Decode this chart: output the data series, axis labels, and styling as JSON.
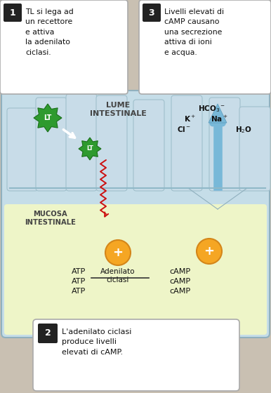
{
  "bg_color": "#c9c0b2",
  "fig_width": 3.86,
  "fig_height": 5.6,
  "box1_text": "TL si lega ad\nun recettore\ne attiva\nla adenilato\nciclasi.",
  "box2_text": "L'adenilato ciclasi\nproduce livelli\nelevati di cAMP.",
  "box3_text": "Livelli elevati di\ncAMP causano\nuna secrezione\nattiva di ioni\ne acqua.",
  "label1": "1",
  "label2": "2",
  "label3": "3",
  "lume_text": "LUME\nINTESTINALE",
  "mucosa_text": "MUCOSA\nINTESTINALE",
  "lt_text": "LT",
  "atp_text": "ATP\nATP\nATP",
  "camp_text": "cAMP\ncAMP\ncAMP",
  "adenilato_text": "Adenilato\nciclasi",
  "plus_symbol": "+",
  "cell_bg_top": "#c5dde8",
  "cell_bg_bottom": "#eef5c8",
  "villi_fill": "#c8dce8",
  "villi_border": "#a0c0cc",
  "box_bg": "#ffffff",
  "green_dark": "#1a6e1a",
  "green_lt": "#2e9a2e",
  "orange_color": "#f5a623",
  "orange_border": "#d4861a",
  "arrow_blue": "#78b8d8",
  "arrow_blue_border": "#5898b8",
  "arrow_red": "#cc1111",
  "text_dark": "#111111",
  "text_gray": "#444444"
}
